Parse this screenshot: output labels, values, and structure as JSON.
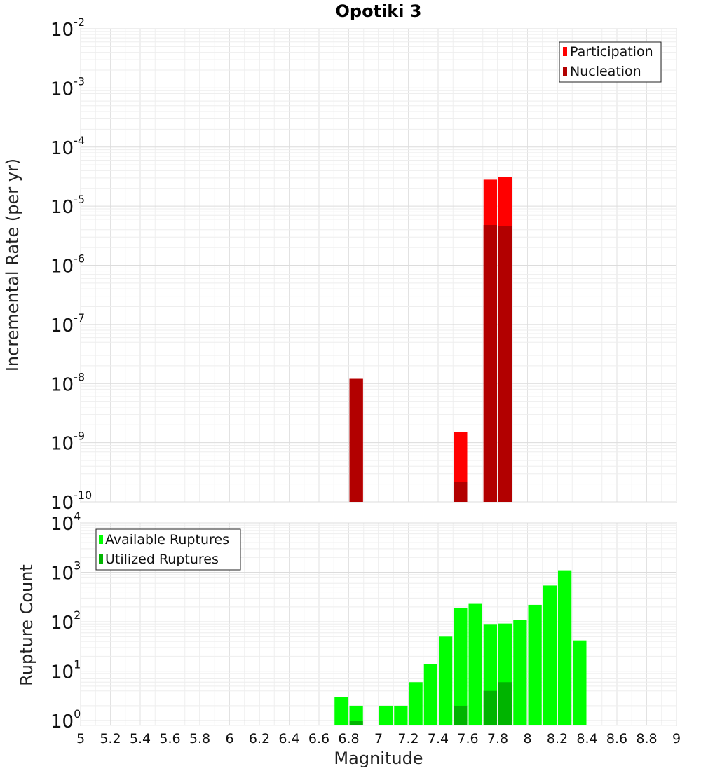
{
  "chart_data": [
    {
      "type": "bar",
      "title": "Opotiki 3",
      "ylabel": "Incremental Rate (per yr)",
      "xlabel": "",
      "y_scale": "log",
      "ylim": [
        1e-10,
        0.01
      ],
      "xlim": [
        5,
        9
      ],
      "grid": true,
      "legend_position": "top-right",
      "series": [
        {
          "name": "Participation",
          "color": "#ff0000",
          "x": [
            6.85,
            7.55,
            7.75,
            7.85
          ],
          "values": [
            1.2e-08,
            1.5e-09,
            2.8e-05,
            3.1e-05
          ]
        },
        {
          "name": "Nucleation",
          "color": "#b20000",
          "x": [
            6.85,
            7.55,
            7.75,
            7.85
          ],
          "values": [
            1.2e-08,
            2.2e-10,
            4.8e-06,
            4.6e-06
          ]
        }
      ],
      "yticks_exponents": [
        -10,
        -9,
        -8,
        -7,
        -6,
        -5,
        -4,
        -3,
        -2
      ]
    },
    {
      "type": "bar",
      "title": "",
      "ylabel": "Rupture Count",
      "xlabel": "Magnitude",
      "y_scale": "log",
      "ylim": [
        0.8,
        10000
      ],
      "xlim": [
        5,
        9
      ],
      "grid": true,
      "legend_position": "top-left",
      "series": [
        {
          "name": "Available Ruptures",
          "color": "#00ff00",
          "x": [
            6.75,
            6.85,
            7.05,
            7.15,
            7.25,
            7.35,
            7.45,
            7.55,
            7.65,
            7.75,
            7.85,
            7.95,
            8.05,
            8.15,
            8.25,
            8.35
          ],
          "values": [
            3,
            2,
            2,
            2,
            6,
            14,
            50,
            190,
            230,
            90,
            92,
            110,
            220,
            540,
            1100,
            42
          ]
        },
        {
          "name": "Utilized Ruptures",
          "color": "#00b400",
          "x": [
            6.85,
            7.55,
            7.75,
            7.85
          ],
          "values": [
            1,
            2,
            4,
            6
          ]
        }
      ],
      "yticks_exponents": [
        0,
        1,
        2,
        3,
        4
      ],
      "xticks": [
        "5",
        "5.2",
        "5.4",
        "5.6",
        "5.8",
        "6",
        "6.2",
        "6.4",
        "6.6",
        "6.8",
        "7",
        "7.2",
        "7.4",
        "7.6",
        "7.8",
        "8",
        "8.2",
        "8.4",
        "8.6",
        "8.8",
        "9"
      ]
    }
  ]
}
